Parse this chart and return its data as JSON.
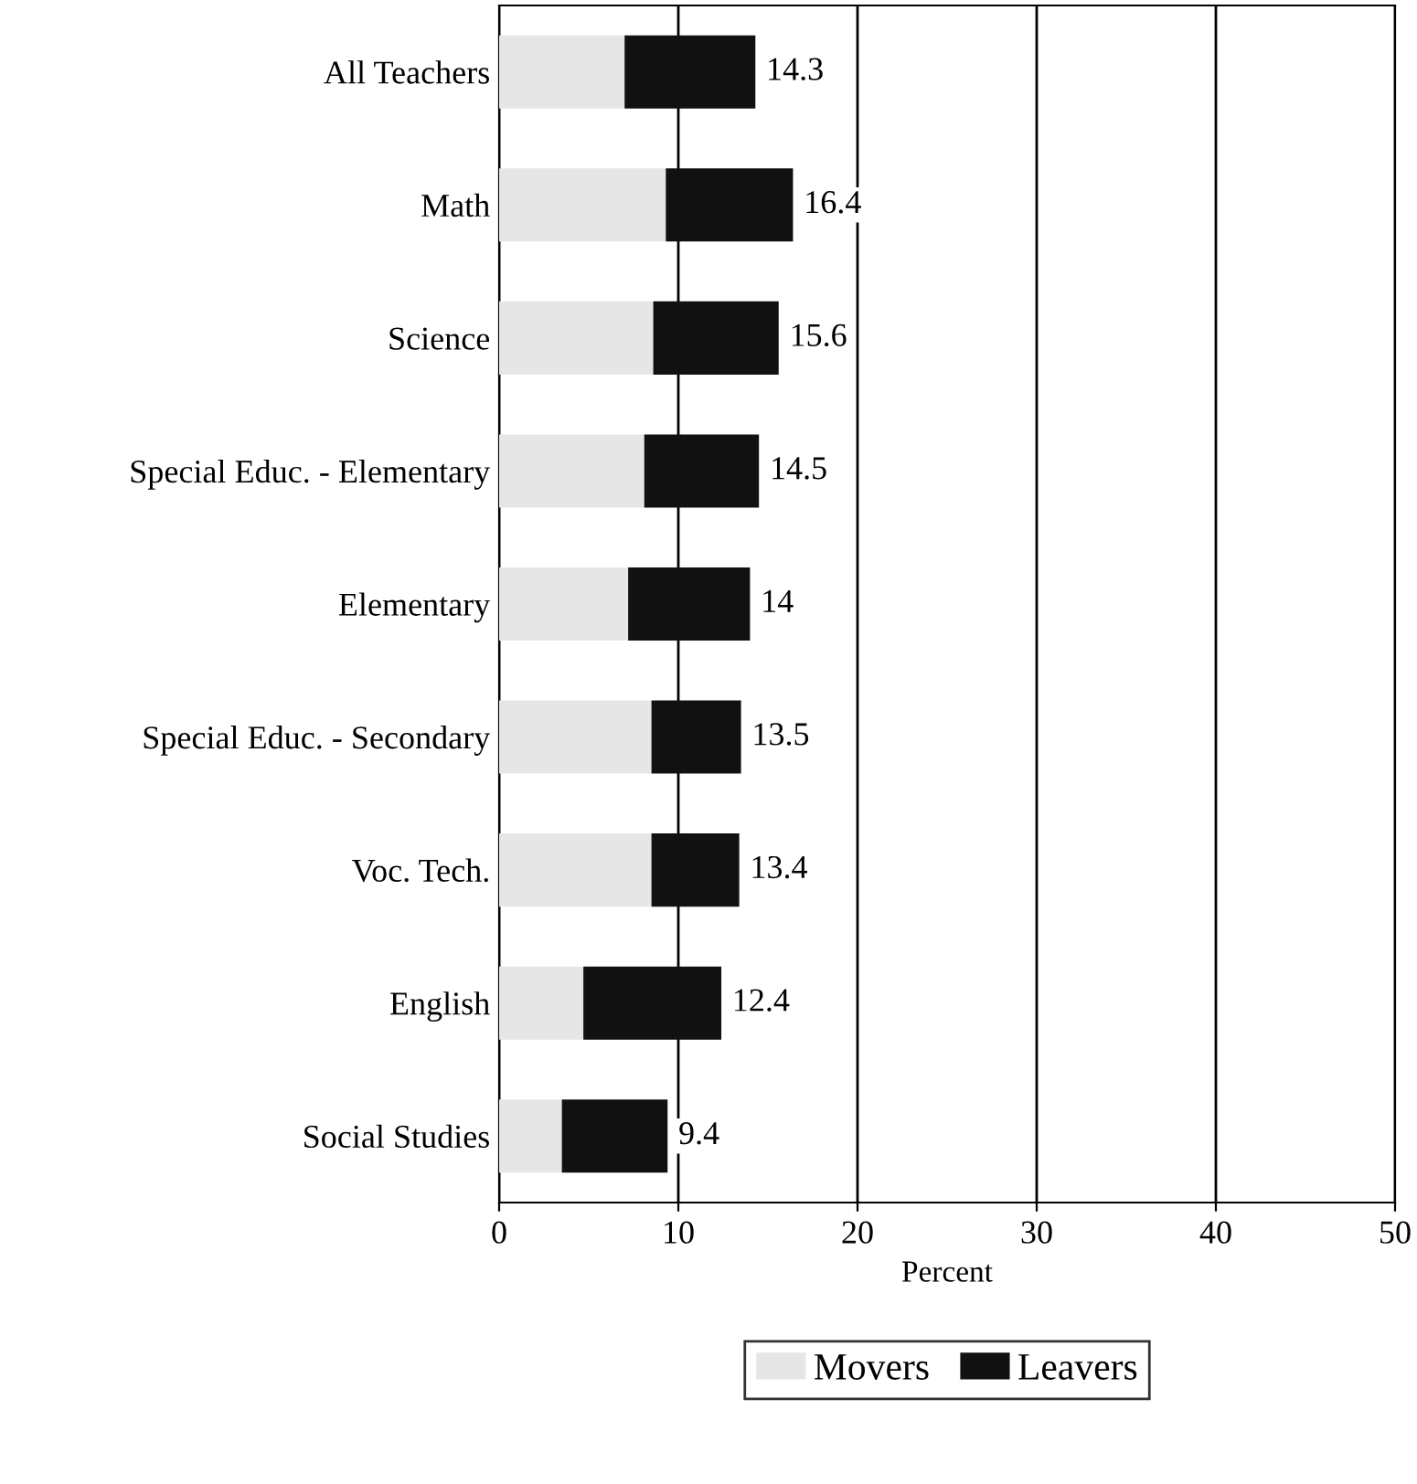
{
  "chart_data": {
    "type": "bar",
    "orientation": "horizontal",
    "stacked": true,
    "xlabel": "Percent",
    "categories": [
      "All Teachers",
      "Math",
      "Science",
      "Special Educ. - Elementary",
      "Elementary",
      "Special Educ. - Secondary",
      "Voc. Tech.",
      "English",
      "Social Studies"
    ],
    "series": [
      {
        "name": "Movers",
        "color": "#e6e6e6",
        "values": [
          7.0,
          9.3,
          8.6,
          8.1,
          7.2,
          8.5,
          8.5,
          4.7,
          3.5
        ]
      },
      {
        "name": "Leavers",
        "color": "#111111",
        "values": [
          7.3,
          7.1,
          7.0,
          6.4,
          6.8,
          5.0,
          4.9,
          7.7,
          5.9
        ]
      }
    ],
    "totals": [
      "14.3",
      "16.4",
      "15.6",
      "14.5",
      "14",
      "13.5",
      "13.4",
      "12.4",
      "9.4"
    ],
    "xlim": [
      0,
      50
    ],
    "xticks": [
      0,
      10,
      20,
      30,
      40,
      50
    ],
    "grid": "x",
    "legend": "bottom"
  }
}
